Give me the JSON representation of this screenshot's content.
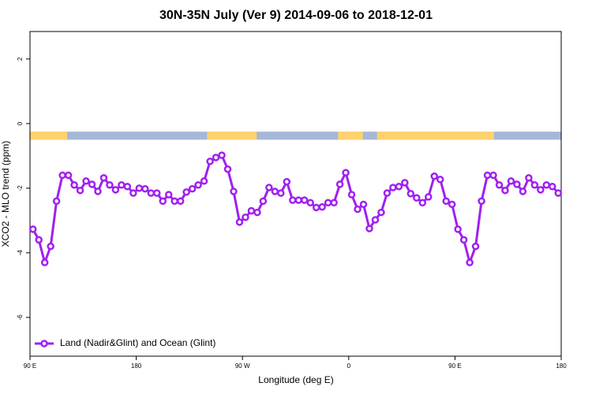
{
  "chart_data": {
    "type": "line",
    "title": "30N-35N July (Ver 9)   2014-09-06 to 2018-12-01",
    "x_label": "Longitude (deg E)",
    "y_label": "XCO2 - MLO trend (ppm)",
    "xlim": [
      90,
      540
    ],
    "ylim": [
      -7.2,
      2.85
    ],
    "xticks": [
      {
        "value": 90,
        "label": "90 E"
      },
      180,
      {
        "value": 270,
        "label": "90 W"
      },
      {
        "value": 360,
        "label": "0"
      },
      {
        "value": 450,
        "label": "90 E"
      },
      {
        "value": 540,
        "label": "180"
      }
    ],
    "yticks": [
      -6,
      -4,
      -2,
      0,
      2
    ],
    "grid": false,
    "legend": "bottomleft",
    "land_band": {
      "ylim": [
        -0.5,
        -0.25
      ],
      "land_color": "#fcd36e",
      "ocean_color": "#a6b8d8",
      "land_ranges": [
        [
          90,
          121.5
        ],
        [
          240,
          282
        ],
        [
          351,
          372
        ],
        [
          384,
          483
        ]
      ]
    },
    "x": [
      92.5,
      97.5,
      102.5,
      107.5,
      112.5,
      117.5,
      122.5,
      127.5,
      132.5,
      137.5,
      142.5,
      147.5,
      152.5,
      157.5,
      162.5,
      167.5,
      172.5,
      177.5,
      182.5,
      187.5,
      192.5,
      197.5,
      202.5,
      207.5,
      212.5,
      217.5,
      222.5,
      227.5,
      232.5,
      237.5,
      242.5,
      247.5,
      252.5,
      257.5,
      262.5,
      267.5,
      272.5,
      277.5,
      282.5,
      287.5,
      292.5,
      297.5,
      302.5,
      307.5,
      312.5,
      317.5,
      322.5,
      327.5,
      332.5,
      337.5,
      342.5,
      347.5,
      352.5,
      357.5,
      362.5,
      367.5,
      372.5,
      377.5,
      382.5,
      387.5,
      392.5,
      397.5,
      402.5,
      407.5,
      412.5,
      417.5,
      422.5,
      427.5,
      432.5,
      437.5,
      442.5,
      447.5,
      452.5,
      457.5,
      462.5,
      467.5,
      472.5,
      477.5,
      482.5,
      487.5,
      492.5,
      497.5,
      502.5,
      507.5,
      512.5,
      517.5,
      522.5,
      527.5,
      532.5,
      537.5
    ],
    "series": [
      {
        "name": "Land (Nadir&Glint) and Ocean (Glint)",
        "color": "#a020f0",
        "values": [
          -3.27,
          -3.6,
          -4.3,
          -3.8,
          -2.4,
          -1.6,
          -1.6,
          -1.9,
          -2.07,
          -1.78,
          -1.88,
          -2.1,
          -1.68,
          -1.9,
          -2.05,
          -1.9,
          -1.95,
          -2.15,
          -2.0,
          -2.02,
          -2.15,
          -2.15,
          -2.4,
          -2.2,
          -2.4,
          -2.4,
          -2.12,
          -2.02,
          -1.9,
          -1.78,
          -1.17,
          -1.05,
          -0.98,
          -1.41,
          -2.1,
          -3.05,
          -2.9,
          -2.7,
          -2.75,
          -2.4,
          -1.98,
          -2.1,
          -2.15,
          -1.8,
          -2.37,
          -2.37,
          -2.37,
          -2.45,
          -2.6,
          -2.58,
          -2.45,
          -2.45,
          -1.88,
          -1.52,
          -2.2,
          -2.65,
          -2.5,
          -3.25,
          -2.98,
          -2.75,
          -2.15,
          -1.98,
          -1.95,
          -1.83,
          -2.17,
          -2.3,
          -2.45,
          -2.27,
          -1.63,
          -1.73,
          -2.4,
          -2.5,
          -3.27,
          -3.6,
          -4.3,
          -3.8,
          -2.4,
          -1.6,
          -1.6,
          -1.9,
          -2.07,
          -1.78,
          -1.88,
          -2.1,
          -1.68,
          -1.9,
          -2.05,
          -1.9,
          -1.95,
          -2.15
        ]
      }
    ]
  }
}
